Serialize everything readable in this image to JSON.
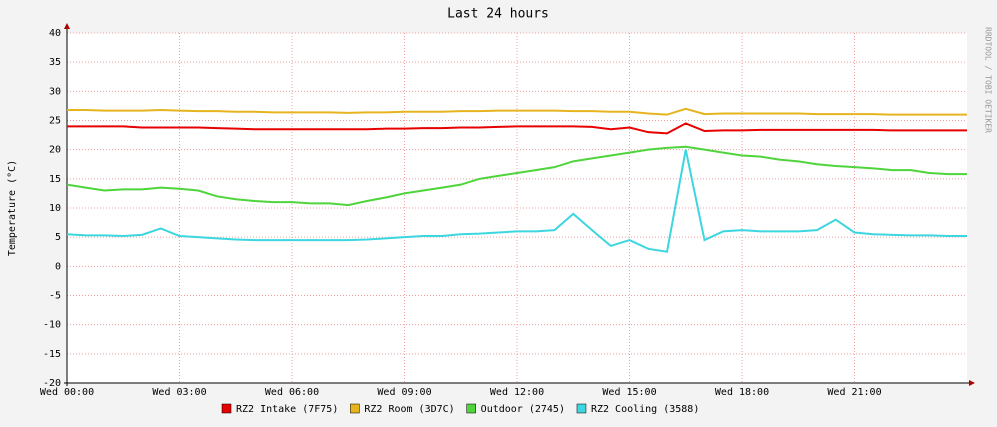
{
  "chart_data": {
    "type": "line",
    "title": "Last 24 hours",
    "y_label": "Temperature (°C)",
    "watermark": "RRDTOOL / TOBI OETIKER",
    "x": [
      0,
      0.5,
      1,
      1.5,
      2,
      2.5,
      3,
      3.5,
      4,
      4.5,
      5,
      5.5,
      6,
      6.5,
      7,
      7.5,
      8,
      8.5,
      9,
      9.5,
      10,
      10.5,
      11,
      11.5,
      12,
      12.5,
      13,
      13.5,
      14,
      14.5,
      15,
      15.5,
      16,
      16.5,
      17,
      17.5,
      18,
      18.5,
      19,
      19.5,
      20,
      20.5,
      21,
      21.5,
      22,
      22.5,
      23,
      23.5,
      24
    ],
    "xlim": [
      0,
      24
    ],
    "xticks": [
      {
        "value": 0,
        "label": "Wed 00:00"
      },
      {
        "value": 3,
        "label": "Wed 03:00"
      },
      {
        "value": 6,
        "label": "Wed 06:00"
      },
      {
        "value": 9,
        "label": "Wed 09:00"
      },
      {
        "value": 12,
        "label": "Wed 12:00"
      },
      {
        "value": 15,
        "label": "Wed 15:00"
      },
      {
        "value": 18,
        "label": "Wed 18:00"
      },
      {
        "value": 21,
        "label": "Wed 21:00"
      }
    ],
    "ylim": [
      -20,
      40
    ],
    "yticks": [
      -20,
      -15,
      -10,
      -5,
      0,
      5,
      10,
      15,
      20,
      25,
      30,
      35,
      40
    ],
    "grid": true,
    "legend": "bottom",
    "series": [
      {
        "name": "RZ2 Intake (7F75)",
        "color": "#e60000",
        "values": [
          24,
          24,
          24,
          24,
          23.8,
          23.8,
          23.8,
          23.8,
          23.7,
          23.6,
          23.5,
          23.5,
          23.5,
          23.5,
          23.5,
          23.5,
          23.5,
          23.6,
          23.6,
          23.7,
          23.7,
          23.8,
          23.8,
          23.9,
          24,
          24,
          24,
          24,
          23.9,
          23.5,
          23.8,
          23,
          22.8,
          24.5,
          23.2,
          23.3,
          23.3,
          23.4,
          23.4,
          23.4,
          23.4,
          23.4,
          23.4,
          23.4,
          23.3,
          23.3,
          23.3,
          23.3,
          23.3
        ]
      },
      {
        "name": "RZ2 Room (3D7C)",
        "color": "#e6b41e",
        "values": [
          26.8,
          26.8,
          26.7,
          26.7,
          26.7,
          26.8,
          26.7,
          26.6,
          26.6,
          26.5,
          26.5,
          26.4,
          26.4,
          26.4,
          26.4,
          26.3,
          26.4,
          26.4,
          26.5,
          26.5,
          26.5,
          26.6,
          26.6,
          26.7,
          26.7,
          26.7,
          26.7,
          26.6,
          26.6,
          26.5,
          26.5,
          26.2,
          26,
          27,
          26.1,
          26.2,
          26.2,
          26.2,
          26.2,
          26.2,
          26.1,
          26.1,
          26.1,
          26.1,
          26,
          26,
          26,
          26,
          26
        ]
      },
      {
        "name": "Outdoor (2745)",
        "color": "#4fd43c",
        "values": [
          14,
          13.5,
          13,
          13.2,
          13.2,
          13.5,
          13.3,
          13,
          12,
          11.5,
          11.2,
          11,
          11,
          10.8,
          10.8,
          10.5,
          11.2,
          11.8,
          12.5,
          13,
          13.5,
          14,
          15,
          15.5,
          16,
          16.5,
          17,
          18,
          18.5,
          19,
          19.5,
          20,
          20.3,
          20.5,
          20,
          19.5,
          19,
          18.8,
          18.3,
          18,
          17.5,
          17.2,
          17,
          16.8,
          16.5,
          16.5,
          16,
          15.8,
          15.8
        ]
      },
      {
        "name": "RZ2 Cooling (3588)",
        "color": "#3cd6e0",
        "values": [
          5.5,
          5.3,
          5.3,
          5.2,
          5.4,
          6.5,
          5.2,
          5,
          4.8,
          4.6,
          4.5,
          4.5,
          4.5,
          4.5,
          4.5,
          4.5,
          4.6,
          4.8,
          5,
          5.2,
          5.2,
          5.5,
          5.6,
          5.8,
          6,
          6,
          6.2,
          9,
          6.2,
          3.5,
          4.5,
          3,
          2.5,
          20,
          4.5,
          6,
          6.2,
          6,
          6,
          6,
          6.2,
          8,
          5.8,
          5.5,
          5.4,
          5.3,
          5.3,
          5.2,
          5.2
        ]
      }
    ]
  }
}
